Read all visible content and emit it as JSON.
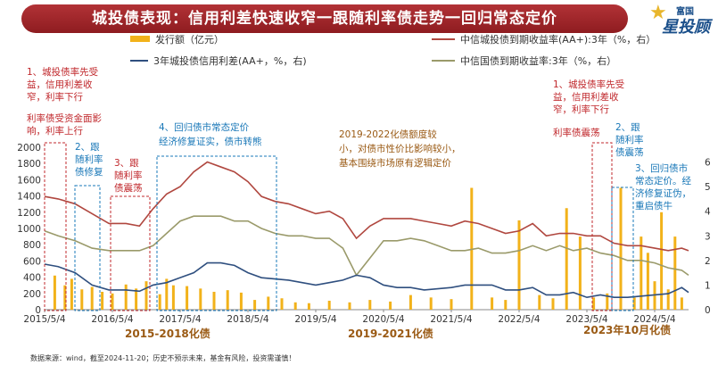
{
  "title": "城投债表现：信用利差快速收窄一跟随利率债走势一回归常态定价",
  "logo": {
    "top": "富国",
    "main": "星投顾"
  },
  "source": "数据来源：wind，截至2024-11-20；历史不预示未来，基金有风险，投资需谨慎！",
  "colors": {
    "red": "#b0473f",
    "olive": "#9a9a6a",
    "navy": "#2f4f7f",
    "bar": "#f2b21a"
  },
  "legend": {
    "issuance": "发行额（亿元）",
    "spread": "3年城投债信用利差(AA+，%，右)",
    "cbond_yield": "中信城投债到期收益率(AA+):3年（%，右）",
    "gov_yield": "中信国债到期收益率:3年（%，右）"
  },
  "annotations": {
    "a1": [
      "1、城投债率先受",
      "益，信用利差收",
      "窄，利率下行"
    ],
    "a1b": [
      "利率债受资金面影",
      "响，利率上行"
    ],
    "a2": [
      "2、跟",
      "随利率",
      "债修复"
    ],
    "a3": [
      "3、跟",
      "随利率",
      "债震荡"
    ],
    "a4": [
      "4、回归债市常态定价",
      "经济修复证实，债市转熊"
    ],
    "mid": [
      "2019-2022化债额度较",
      "小，对债市性价比影响较小，",
      "基本围绕市场原有逻辑定价"
    ],
    "r1": [
      "1、城投债率先受",
      "益，信用利差收",
      "窄，利率下行"
    ],
    "r1b": [
      "利率债震荡"
    ],
    "r2": [
      "2、跟",
      "随利率",
      "债震荡"
    ],
    "r3": [
      "3、回归债市",
      "常态定价。经",
      "济修复证伪，",
      "重启债牛"
    ]
  },
  "periods": {
    "p1": "2015-2018化债",
    "p2": "2019-2021化债",
    "p3": "2023年10月化债"
  },
  "chart_data": {
    "type": "line",
    "x_ticks": [
      "2015/5/4",
      "2016/5/4",
      "2017/5/4",
      "2018/5/4",
      "2019/5/4",
      "2020/5/4",
      "2021/5/4",
      "2022/5/4",
      "2023/5/4",
      "2024/5/4"
    ],
    "left_axis": {
      "ticks": [
        0,
        200,
        400,
        600,
        800,
        1000,
        1200,
        1400,
        1600,
        1800,
        2000
      ],
      "ylim": [
        0,
        2000
      ]
    },
    "right_axis": {
      "ticks": [
        0,
        1,
        2,
        3,
        4,
        5,
        6
      ],
      "ylim": [
        0,
        6.6
      ]
    },
    "series": [
      {
        "name": "中信城投债到期收益率(AA+):3年（%，右）",
        "axis": "right",
        "x": [
          0,
          0.2,
          0.45,
          0.7,
          0.95,
          1.2,
          1.4,
          1.6,
          1.8,
          2.0,
          2.2,
          2.4,
          2.6,
          2.8,
          3.0,
          3.2,
          3.4,
          3.6,
          3.8,
          4.0,
          4.2,
          4.4,
          4.6,
          4.8,
          5.0,
          5.2,
          5.4,
          5.6,
          5.8,
          6.0,
          6.2,
          6.4,
          6.6,
          6.8,
          7.0,
          7.2,
          7.4,
          7.6,
          7.8,
          8.0,
          8.2,
          8.4,
          8.6,
          8.8,
          9.0,
          9.2,
          9.4,
          9.5
        ],
        "y": [
          4.6,
          4.5,
          4.3,
          3.9,
          3.5,
          3.5,
          3.4,
          4.1,
          4.7,
          5.0,
          5.6,
          6.0,
          5.8,
          5.6,
          5.2,
          4.6,
          4.4,
          4.3,
          4.1,
          3.9,
          4.0,
          3.7,
          2.9,
          3.4,
          3.7,
          3.7,
          3.7,
          3.6,
          3.5,
          3.4,
          3.6,
          3.5,
          3.3,
          3.1,
          3.2,
          3.5,
          3.0,
          3.1,
          3.1,
          3.0,
          3.0,
          2.7,
          2.6,
          2.6,
          2.5,
          2.4,
          2.5,
          2.4
        ]
      },
      {
        "name": "中信国债到期收益率:3年（%，右）",
        "axis": "right",
        "x": [
          0,
          0.2,
          0.45,
          0.7,
          0.95,
          1.2,
          1.4,
          1.6,
          1.8,
          2.0,
          2.2,
          2.4,
          2.6,
          2.8,
          3.0,
          3.2,
          3.4,
          3.6,
          3.8,
          4.0,
          4.2,
          4.4,
          4.6,
          4.8,
          5.0,
          5.2,
          5.4,
          5.6,
          5.8,
          6.0,
          6.2,
          6.4,
          6.6,
          6.8,
          7.0,
          7.2,
          7.4,
          7.6,
          7.8,
          8.0,
          8.2,
          8.4,
          8.6,
          8.8,
          9.0,
          9.2,
          9.4,
          9.5
        ],
        "y": [
          3.2,
          3.0,
          2.8,
          2.5,
          2.4,
          2.4,
          2.4,
          2.6,
          3.1,
          3.6,
          3.8,
          3.8,
          3.8,
          3.6,
          3.6,
          3.3,
          3.1,
          3.0,
          3.0,
          2.9,
          2.9,
          2.5,
          1.4,
          2.1,
          2.8,
          2.8,
          2.9,
          2.8,
          2.6,
          2.4,
          2.4,
          2.5,
          2.3,
          2.3,
          2.4,
          2.6,
          2.4,
          2.6,
          2.4,
          2.5,
          2.3,
          2.2,
          2.0,
          2.0,
          1.9,
          1.7,
          1.6,
          1.4
        ]
      },
      {
        "name": "3年城投债信用利差(AA+，%，右)",
        "axis": "right",
        "x": [
          0,
          0.2,
          0.45,
          0.7,
          0.95,
          1.2,
          1.4,
          1.6,
          1.8,
          2.0,
          2.2,
          2.4,
          2.6,
          2.8,
          3.0,
          3.2,
          3.4,
          3.6,
          3.8,
          4.0,
          4.2,
          4.4,
          4.6,
          4.8,
          5.0,
          5.2,
          5.4,
          5.6,
          5.8,
          6.0,
          6.2,
          6.4,
          6.6,
          6.8,
          7.0,
          7.2,
          7.4,
          7.6,
          7.8,
          8.0,
          8.2,
          8.4,
          8.6,
          8.8,
          9.0,
          9.2,
          9.4,
          9.5
        ],
        "y": [
          1.85,
          1.75,
          1.5,
          1.0,
          0.8,
          0.8,
          0.75,
          1.0,
          1.1,
          1.3,
          1.5,
          1.9,
          1.9,
          1.8,
          1.5,
          1.3,
          1.25,
          1.2,
          1.1,
          1.0,
          1.1,
          1.2,
          1.4,
          1.3,
          1.0,
          0.9,
          0.9,
          0.8,
          0.85,
          0.9,
          1.0,
          1.0,
          1.0,
          0.8,
          0.8,
          0.9,
          0.6,
          0.6,
          0.7,
          0.5,
          0.6,
          0.5,
          0.5,
          0.55,
          0.6,
          0.65,
          0.9,
          0.7
        ]
      }
    ],
    "bars": {
      "name": "发行额（亿元）",
      "axis": "left",
      "x": [
        0.15,
        0.3,
        0.4,
        0.55,
        0.7,
        0.85,
        1.0,
        1.2,
        1.35,
        1.5,
        1.7,
        1.8,
        1.9,
        2.1,
        2.3,
        2.5,
        2.7,
        2.9,
        3.1,
        3.3,
        3.5,
        3.7,
        3.9,
        4.2,
        4.5,
        4.8,
        5.1,
        5.4,
        5.7,
        6.0,
        6.3,
        6.6,
        6.8,
        7.0,
        7.3,
        7.5,
        7.7,
        7.9,
        8.1,
        8.3,
        8.5,
        8.7,
        8.8,
        8.9,
        9.0,
        9.1,
        9.2,
        9.3,
        9.4
      ],
      "values": [
        420,
        300,
        380,
        250,
        280,
        220,
        200,
        310,
        260,
        350,
        190,
        380,
        300,
        290,
        260,
        220,
        240,
        210,
        120,
        160,
        140,
        90,
        80,
        110,
        90,
        120,
        100,
        180,
        150,
        130,
        1500,
        150,
        120,
        1100,
        180,
        140,
        1250,
        900,
        150,
        200,
        1500,
        150,
        900,
        700,
        350,
        1200,
        250,
        900,
        150
      ]
    }
  }
}
